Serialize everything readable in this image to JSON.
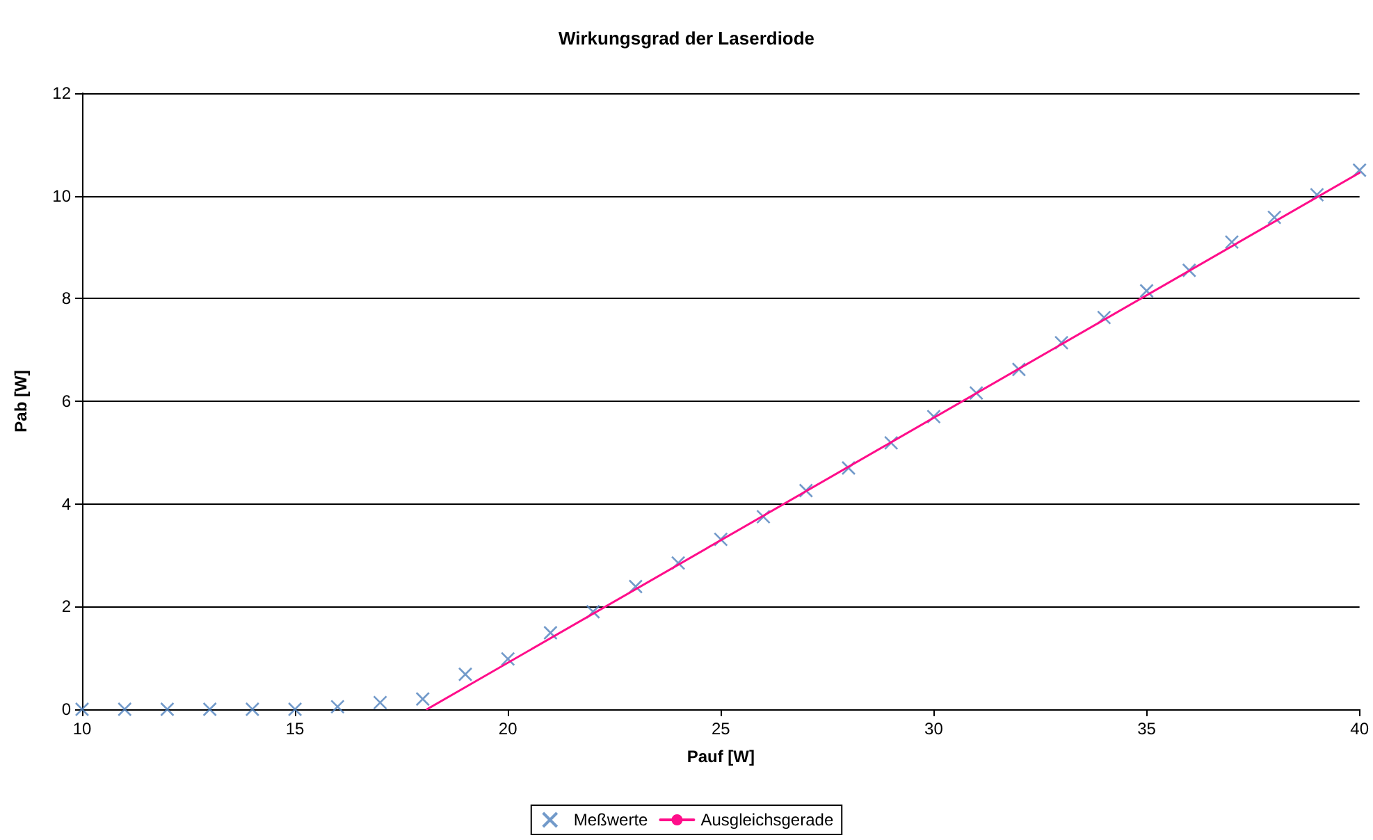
{
  "chart_data": {
    "type": "scatter",
    "title": "Wirkungsgrad der Laserdiode",
    "xlabel": "Pauf [W]",
    "ylabel": "Pab [W]",
    "xlim": [
      10,
      40
    ],
    "xticks": [
      10,
      15,
      20,
      25,
      30,
      35,
      40
    ],
    "ylim": [
      0,
      12
    ],
    "yticks": [
      0,
      2,
      4,
      6,
      8,
      10,
      12
    ],
    "grid": "y",
    "legend": "bottom",
    "marker": "cross",
    "series": [
      {
        "name": "Meßwerte",
        "color": "#4f81bd",
        "x": [
          10,
          11,
          12,
          13,
          14,
          15,
          16,
          17,
          18,
          19,
          20,
          21,
          22,
          23,
          24,
          25,
          26,
          27,
          28,
          29,
          30,
          31,
          32,
          33,
          34,
          35,
          36,
          37,
          38,
          39,
          40
        ],
        "values": [
          0,
          0,
          0,
          0,
          0,
          0,
          0.05,
          0.13,
          0.2,
          0.68,
          0.98,
          1.49,
          1.9,
          2.39,
          2.85,
          3.31,
          3.75,
          4.26,
          4.7,
          5.19,
          5.7,
          6.16,
          6.62,
          7.14,
          7.63,
          8.15,
          8.55,
          9.1,
          9.58,
          10.02,
          10.5
        ]
      },
      {
        "name": "Ausgleichsgerade",
        "type": "line",
        "color": "#ff0d8a",
        "line_style": "solid",
        "marker": "none",
        "x": [
          18.1,
          40
        ],
        "values": [
          0,
          10.45
        ]
      }
    ]
  }
}
